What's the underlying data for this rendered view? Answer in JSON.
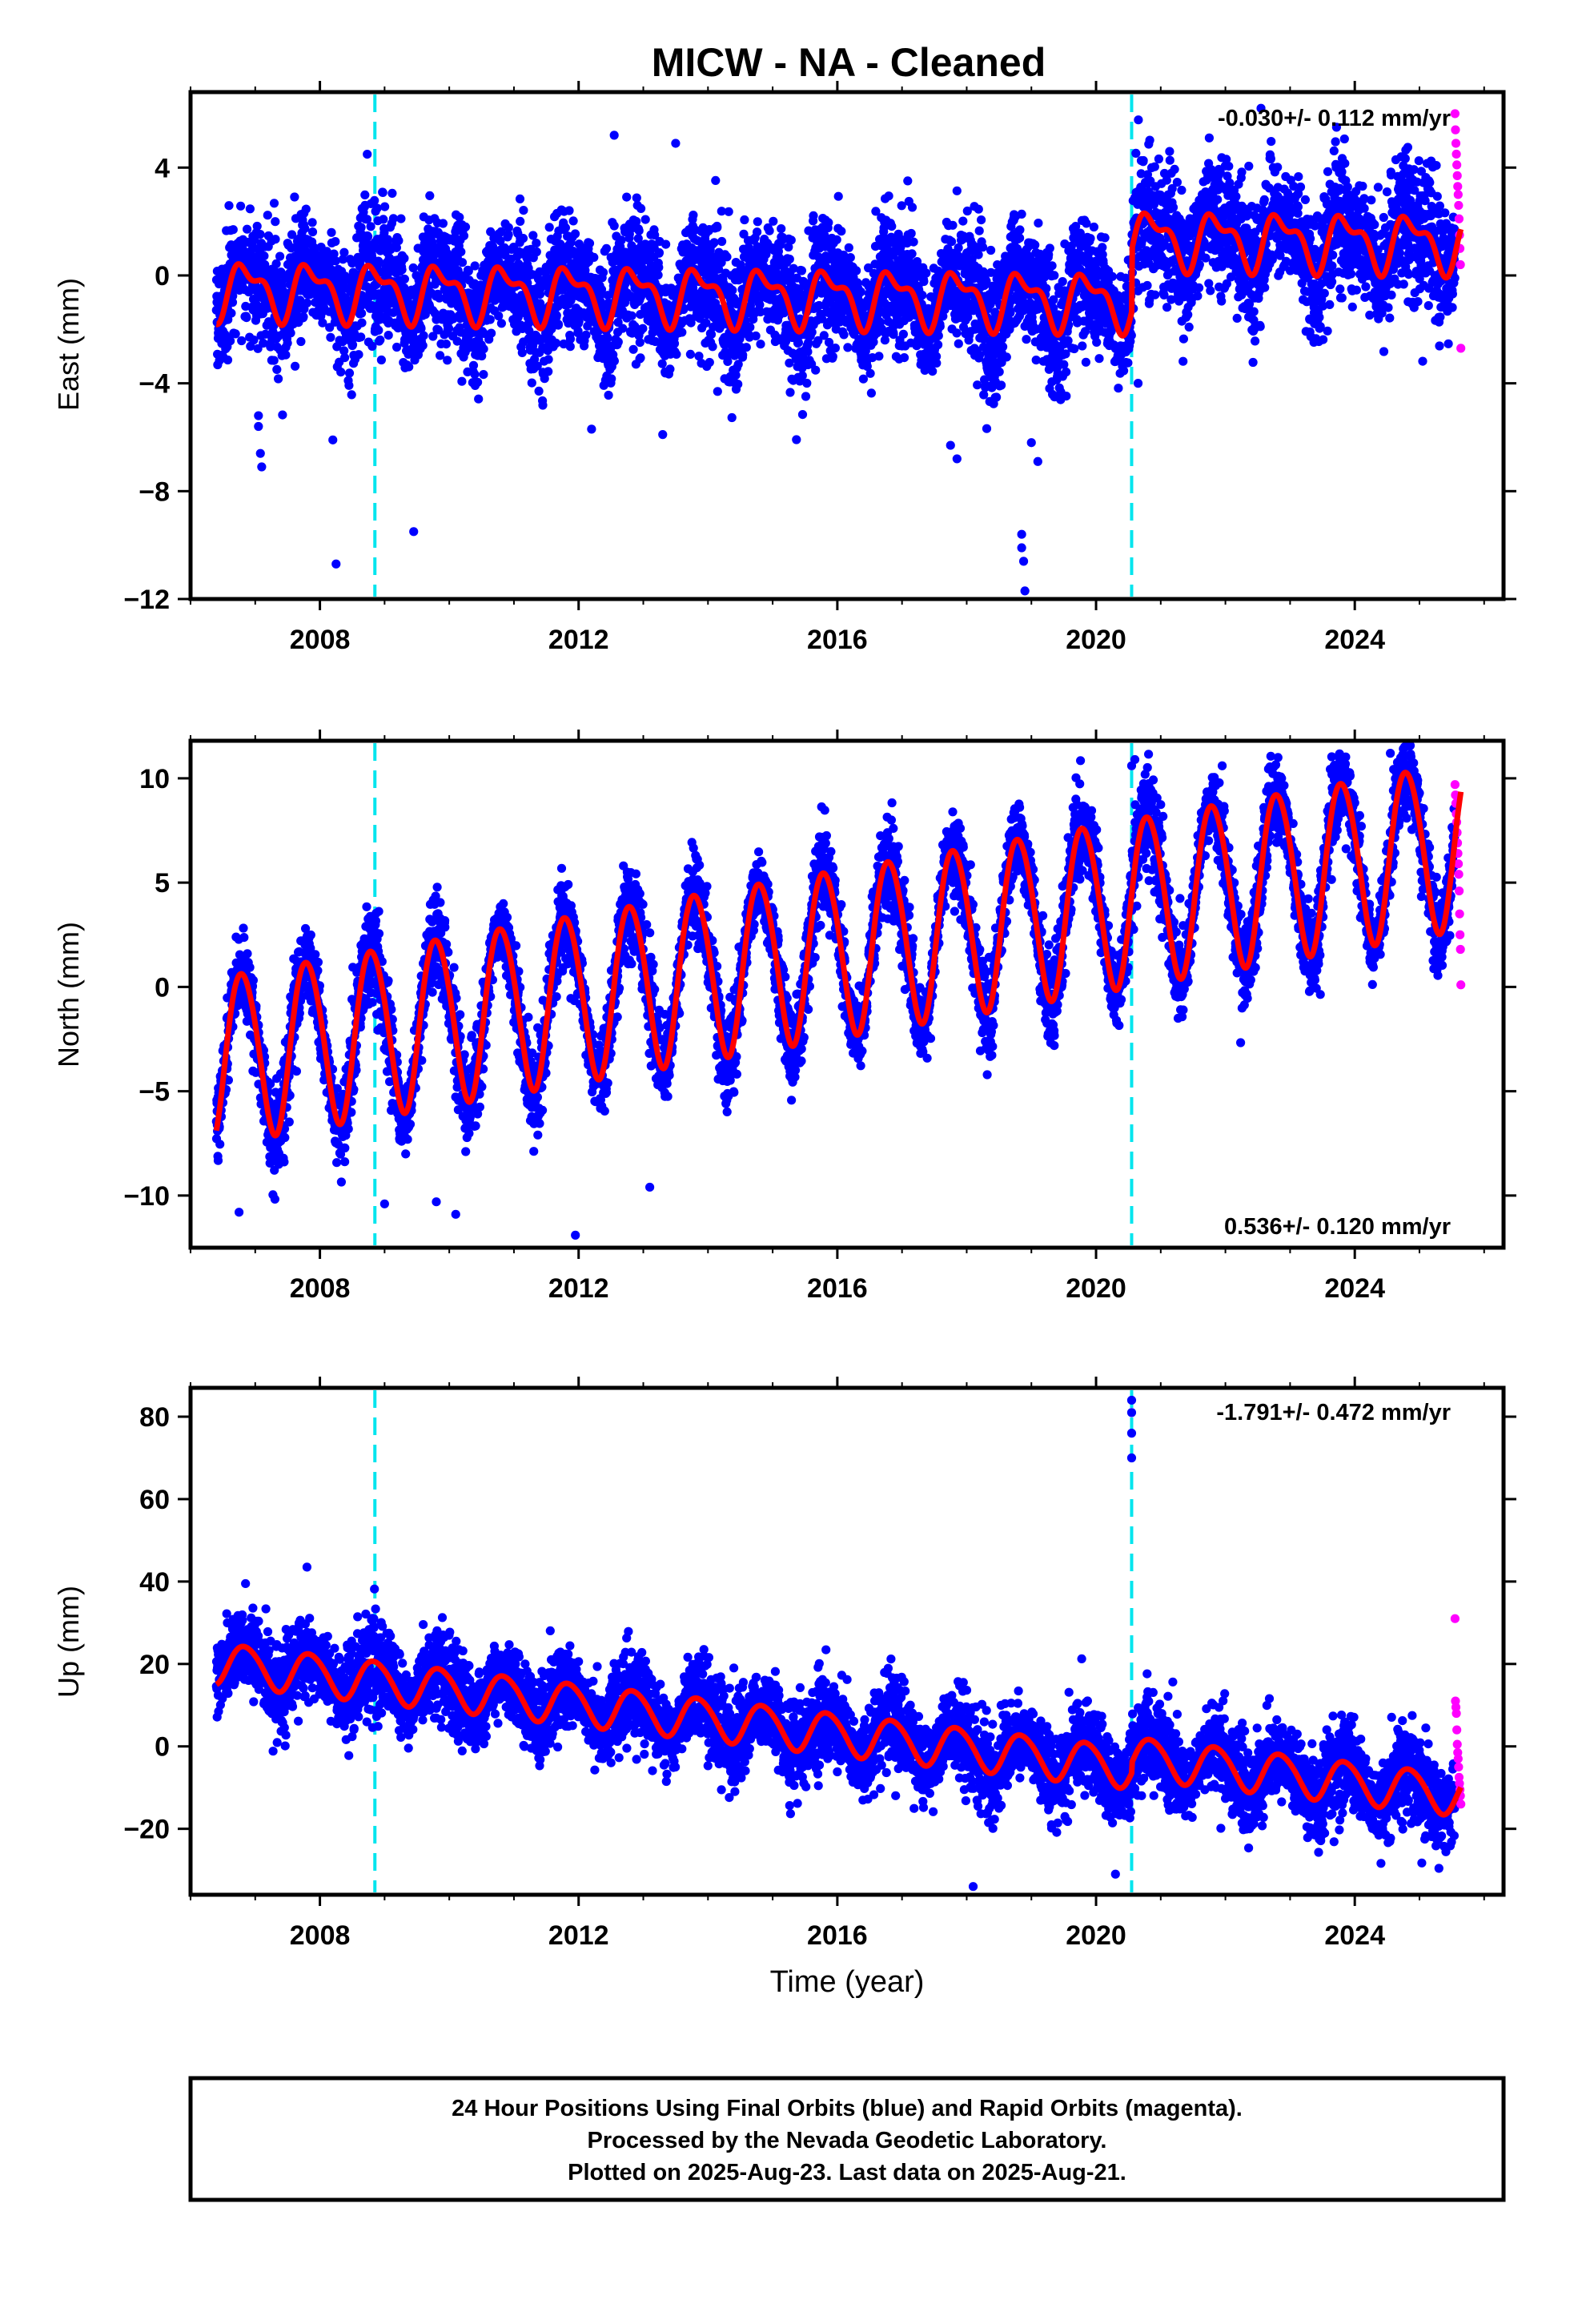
{
  "title": "MICW  - NA - Cleaned",
  "xlabel": "Time (year)",
  "footer": {
    "line1": "24 Hour Positions Using Final Orbits (blue) and Rapid Orbits (magenta).",
    "line2": "Processed by the Nevada Geodetic Laboratory.",
    "line3": "Plotted on 2025-Aug-23. Last data on 2025-Aug-21."
  },
  "colors": {
    "final": "#0000ff",
    "rapid": "#ff00ff",
    "model": "#ff0000",
    "steps": "#00e5ee"
  },
  "chart_data": [
    {
      "type": "scatter",
      "ylabel": "East (mm)",
      "rate_label": "-0.030+/- 0.112 mm/yr",
      "rate_position": "top-right",
      "xlim": [
        2006.0,
        2026.3
      ],
      "ylim": [
        -12.0,
        6.8
      ],
      "xticks": [
        2008,
        2012,
        2016,
        2020,
        2024
      ],
      "xtick_labels": [
        "2008",
        "2012",
        "2016",
        "2020",
        "2024"
      ],
      "yticks": [
        -12,
        -8,
        -4,
        0,
        4
      ],
      "ytick_labels": [
        "−12",
        "−8",
        "−4",
        "0",
        "4"
      ],
      "step_epochs": [
        2008.85,
        2020.55
      ],
      "data_start": 2006.4,
      "last_final": 2025.55,
      "last_data": 2025.64,
      "model": {
        "rate": -0.03,
        "intercept_2006": -0.5,
        "annual_amplitude": 0.9,
        "annual_phase_year": 0.62,
        "semiannual_amplitude": 0.45,
        "offsets": [
          {
            "epoch": 2008.85,
            "offset": 0.0
          },
          {
            "epoch": 2020.55,
            "offset": 2.3
          }
        ]
      },
      "scatter": 1.05,
      "outliers": [
        {
          "x": 2007.05,
          "y": -5.2
        },
        {
          "x": 2007.05,
          "y": -5.6
        },
        {
          "x": 2007.08,
          "y": -6.6
        },
        {
          "x": 2007.1,
          "y": -7.1
        },
        {
          "x": 2008.25,
          "y": -10.7
        },
        {
          "x": 2008.2,
          "y": -6.1
        },
        {
          "x": 2009.45,
          "y": -9.5
        },
        {
          "x": 2012.2,
          "y": -5.7
        },
        {
          "x": 2013.3,
          "y": -5.9
        },
        {
          "x": 2017.75,
          "y": -6.3
        },
        {
          "x": 2017.85,
          "y": -6.8
        },
        {
          "x": 2018.85,
          "y": -9.6
        },
        {
          "x": 2018.85,
          "y": -10.1
        },
        {
          "x": 2018.88,
          "y": -10.6
        },
        {
          "x": 2018.9,
          "y": -11.7
        },
        {
          "x": 2019.0,
          "y": -6.2
        },
        {
          "x": 2019.1,
          "y": -6.9
        },
        {
          "x": 2020.65,
          "y": -4.0
        },
        {
          "x": 2012.55,
          "y": 5.2
        },
        {
          "x": 2013.5,
          "y": 4.9
        },
        {
          "x": 2021.75,
          "y": 5.1
        },
        {
          "x": 2022.55,
          "y": 6.2
        }
      ],
      "rapid_values": [
        6.0,
        5.4,
        4.9,
        4.5,
        4.1,
        3.7,
        3.3,
        3.0,
        2.6,
        2.1,
        1.5,
        1.0,
        0.4,
        -2.7
      ]
    },
    {
      "type": "scatter",
      "ylabel": "North (mm)",
      "rate_label": "0.536+/- 0.120 mm/yr",
      "rate_position": "bottom-right",
      "xlim": [
        2006.0,
        2026.3
      ],
      "ylim": [
        -12.5,
        11.8
      ],
      "xticks": [
        2008,
        2012,
        2016,
        2020,
        2024
      ],
      "xtick_labels": [
        "2008",
        "2012",
        "2016",
        "2020",
        "2024"
      ],
      "yticks": [
        -10,
        -5,
        0,
        5,
        10
      ],
      "ytick_labels": [
        "−10",
        "−5",
        "0",
        "5",
        "10"
      ],
      "step_epochs": [
        2008.85,
        2020.55
      ],
      "data_start": 2006.4,
      "last_final": 2025.55,
      "last_data": 2025.64,
      "model": {
        "rate": 0.536,
        "intercept_2006": -3.6,
        "annual_amplitude": 4.0,
        "annual_phase_year": 0.55,
        "semiannual_amplitude": 0.3,
        "offsets": [
          {
            "epoch": 2008.85,
            "offset": 0.0
          },
          {
            "epoch": 2020.55,
            "offset": 0.0
          }
        ]
      },
      "scatter": 0.9,
      "outliers": [
        {
          "x": 2006.75,
          "y": -10.8
        },
        {
          "x": 2009.0,
          "y": -10.4
        },
        {
          "x": 2009.8,
          "y": -10.3
        },
        {
          "x": 2010.1,
          "y": -10.9
        },
        {
          "x": 2011.95,
          "y": -11.9
        },
        {
          "x": 2013.1,
          "y": -9.6
        },
        {
          "x": 2020.6,
          "y": 10.9
        },
        {
          "x": 2020.55,
          "y": 10.6
        },
        {
          "x": 2021.95,
          "y": 10.6
        },
        {
          "x": 2024.55,
          "y": 11.2
        }
      ],
      "rapid_values": [
        9.7,
        9.2,
        8.8,
        8.3,
        7.9,
        7.4,
        6.9,
        6.4,
        5.9,
        5.4,
        4.6,
        3.5,
        2.5,
        1.8,
        0.1
      ]
    },
    {
      "type": "scatter",
      "ylabel": "Up (mm)",
      "rate_label": "-1.791+/- 0.472 mm/yr",
      "rate_position": "top-right",
      "xlim": [
        2006.0,
        2026.3
      ],
      "ylim": [
        -36.0,
        87.0
      ],
      "xticks": [
        2008,
        2012,
        2016,
        2020,
        2024
      ],
      "xtick_labels": [
        "2008",
        "2012",
        "2016",
        "2020",
        "2024"
      ],
      "yticks": [
        -20,
        0,
        20,
        40,
        60,
        80
      ],
      "ytick_labels": [
        "−20",
        "0",
        "20",
        "40",
        "60",
        "80"
      ],
      "step_epochs": [
        2008.85,
        2020.55
      ],
      "data_start": 2006.4,
      "last_final": 2025.55,
      "last_data": 2025.64,
      "model": {
        "rate": -1.791,
        "intercept_2006": 21.0,
        "annual_amplitude": 5.0,
        "annual_phase_year": 0.6,
        "semiannual_amplitude": 0.5,
        "offsets": [
          {
            "epoch": 2008.85,
            "offset": 0.0
          },
          {
            "epoch": 2020.55,
            "offset": 2.5
          }
        ]
      },
      "scatter": 4.6,
      "outliers": [
        {
          "x": 2020.55,
          "y": 84.0
        },
        {
          "x": 2020.55,
          "y": 81.0
        },
        {
          "x": 2020.55,
          "y": 76.0
        },
        {
          "x": 2020.55,
          "y": 70.0
        },
        {
          "x": 2007.8,
          "y": 43.5
        },
        {
          "x": 2006.85,
          "y": 39.5
        },
        {
          "x": 2018.1,
          "y": -34.0
        },
        {
          "x": 2020.3,
          "y": -31.0
        }
      ],
      "rapid_values": [
        31.0,
        11.0,
        9.5,
        8.0,
        4.0,
        0.5,
        -1.5,
        -3.0,
        -5.0,
        -7.5,
        -9.0,
        -10.5,
        -12.0,
        -14.0
      ]
    }
  ]
}
